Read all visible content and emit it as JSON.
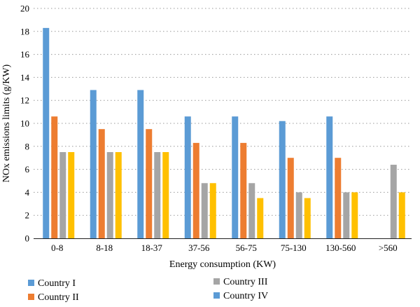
{
  "chart_data": {
    "type": "bar",
    "title": "",
    "xlabel": "Energy consumption (KW)",
    "ylabel": "NOx emissions limits (g/KW)",
    "ylim": [
      0,
      20
    ],
    "yticks": [
      0,
      2,
      4,
      6,
      8,
      10,
      12,
      14,
      16,
      18,
      20
    ],
    "grid": "horizontal-dotted",
    "legend_position": "bottom",
    "categories": [
      "0-8",
      "8-18",
      "18-37",
      "37-56",
      "56-75",
      "75-130",
      "130-560",
      ">560"
    ],
    "series": [
      {
        "name": "Country I",
        "color": "#5b9bd5",
        "values": [
          18.3,
          12.9,
          12.9,
          10.6,
          10.6,
          10.2,
          10.6,
          null
        ]
      },
      {
        "name": "Country II",
        "color": "#ed7d31",
        "values": [
          10.6,
          9.5,
          9.5,
          8.3,
          8.3,
          7.0,
          7.0,
          null
        ]
      },
      {
        "name": "Country III",
        "color": "#a5a5a5",
        "values": [
          7.5,
          7.5,
          7.5,
          4.8,
          4.8,
          4.0,
          4.0,
          6.4
        ]
      },
      {
        "name": "Country IV",
        "color": "#ffc000",
        "values": [
          7.5,
          7.5,
          7.5,
          4.8,
          3.5,
          3.5,
          4.0,
          4.0
        ]
      }
    ],
    "legend_swatch_colors": [
      "#5b9bd5",
      "#ed7d31",
      "#a5a5a5",
      "#5b9bd5"
    ]
  }
}
